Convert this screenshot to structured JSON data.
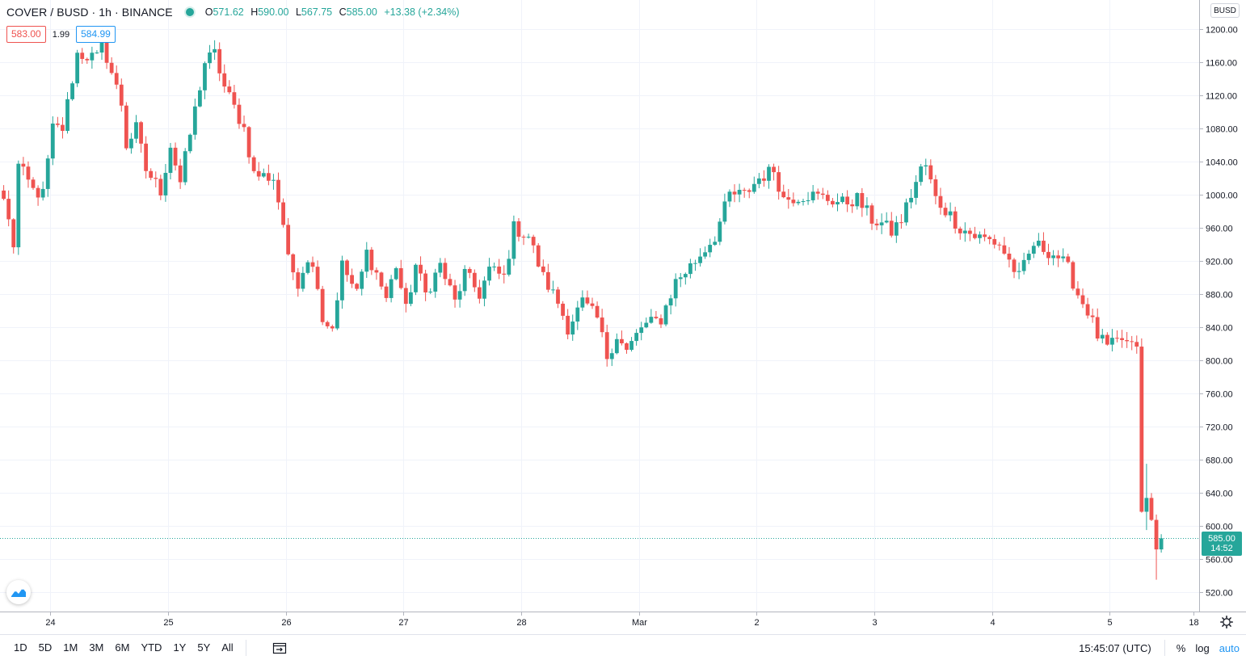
{
  "legend": {
    "symbol": "COVER / BUSD · 1h · BINANCE",
    "open_label": "O",
    "open": "571.62",
    "high_label": "H",
    "high": "590.00",
    "low_label": "L",
    "low": "567.75",
    "close_label": "C",
    "close": "585.00",
    "change": "+13.38 (+2.34%)"
  },
  "quote": {
    "bid": "583.00",
    "spread": "1.99",
    "ask": "584.99"
  },
  "currency": "BUSD",
  "last_price": {
    "value": "585.00",
    "countdown": "14:52"
  },
  "bottom_bar": {
    "periods": [
      "1D",
      "5D",
      "1M",
      "3M",
      "6M",
      "YTD",
      "1Y",
      "5Y",
      "All"
    ],
    "clock": "15:45:07 (UTC)",
    "percent": "%",
    "log": "log",
    "auto": "auto"
  },
  "colors": {
    "up": "#26a69a",
    "down": "#ef5350",
    "grid": "#f0f3fa",
    "axis": "#b2b5be",
    "accent": "#2196f3"
  },
  "chart_data": {
    "type": "candlestick",
    "title": "COVER / BUSD · 1h · BINANCE",
    "ylim": [
      500,
      1220
    ],
    "y_ticks": [
      1200,
      1160,
      1120,
      1080,
      1040,
      1000,
      960,
      920,
      880,
      840,
      800,
      760,
      720,
      680,
      640,
      600,
      560,
      520
    ],
    "x_ticks": [
      {
        "label": "24",
        "hour": 9.5
      },
      {
        "label": "25",
        "hour": 33.5
      },
      {
        "label": "26",
        "hour": 57.5
      },
      {
        "label": "27",
        "hour": 81.5
      },
      {
        "label": "28",
        "hour": 105.5
      },
      {
        "label": "Mar",
        "hour": 129.5
      },
      {
        "label": "2",
        "hour": 153.5
      },
      {
        "label": "3",
        "hour": 177.5
      },
      {
        "label": "4",
        "hour": 201.5
      },
      {
        "label": "5",
        "hour": 225.5
      },
      {
        "label": "18",
        "hour": 242.5
      }
    ],
    "anchors": [
      [
        0,
        995
      ],
      [
        2,
        940
      ],
      [
        3,
        1035
      ],
      [
        6,
        1005
      ],
      [
        8,
        1000
      ],
      [
        10,
        1080
      ],
      [
        12,
        1080
      ],
      [
        15,
        1170
      ],
      [
        19,
        1165
      ],
      [
        20,
        1185
      ],
      [
        24,
        1110
      ],
      [
        25,
        1060
      ],
      [
        27,
        1080
      ],
      [
        29,
        1030
      ],
      [
        32,
        1005
      ],
      [
        34,
        1060
      ],
      [
        36,
        1015
      ],
      [
        41,
        1160
      ],
      [
        43,
        1170
      ],
      [
        45,
        1130
      ],
      [
        49,
        1080
      ],
      [
        51,
        1025
      ],
      [
        55,
        1020
      ],
      [
        57,
        965
      ],
      [
        58,
        920
      ],
      [
        60,
        895
      ],
      [
        62,
        925
      ],
      [
        64,
        895
      ],
      [
        65,
        850
      ],
      [
        67,
        840
      ],
      [
        69,
        915
      ],
      [
        72,
        880
      ],
      [
        74,
        930
      ],
      [
        76,
        905
      ],
      [
        78,
        875
      ],
      [
        80,
        915
      ],
      [
        82,
        860
      ],
      [
        84,
        915
      ],
      [
        86,
        880
      ],
      [
        89,
        915
      ],
      [
        92,
        870
      ],
      [
        94,
        905
      ],
      [
        97,
        880
      ],
      [
        99,
        910
      ],
      [
        102,
        900
      ],
      [
        104,
        960
      ],
      [
        107,
        950
      ],
      [
        110,
        900
      ],
      [
        113,
        870
      ],
      [
        115,
        840
      ],
      [
        118,
        870
      ],
      [
        121,
        850
      ],
      [
        123,
        805
      ],
      [
        125,
        830
      ],
      [
        127,
        810
      ],
      [
        130,
        840
      ],
      [
        134,
        850
      ],
      [
        137,
        895
      ],
      [
        141,
        920
      ],
      [
        145,
        950
      ],
      [
        148,
        1000
      ],
      [
        151,
        1000
      ],
      [
        154,
        1020
      ],
      [
        157,
        1030
      ],
      [
        159,
        995
      ],
      [
        164,
        1000
      ],
      [
        168,
        995
      ],
      [
        171,
        990
      ],
      [
        174,
        995
      ],
      [
        177,
        970
      ],
      [
        179,
        965
      ],
      [
        181,
        955
      ],
      [
        183,
        970
      ],
      [
        185,
        1000
      ],
      [
        187,
        1030
      ],
      [
        188,
        1035
      ],
      [
        190,
        995
      ],
      [
        193,
        975
      ],
      [
        195,
        960
      ],
      [
        198,
        950
      ],
      [
        201,
        945
      ],
      [
        203,
        940
      ],
      [
        205,
        920
      ],
      [
        207,
        900
      ],
      [
        210,
        940
      ],
      [
        212,
        935
      ],
      [
        215,
        925
      ],
      [
        217,
        910
      ],
      [
        219,
        880
      ],
      [
        221,
        860
      ],
      [
        223,
        830
      ],
      [
        225,
        815
      ],
      [
        228,
        825
      ],
      [
        230,
        815
      ],
      [
        231,
        820
      ],
      [
        232,
        612
      ],
      [
        233,
        632
      ],
      [
        234,
        605
      ],
      [
        235,
        571.62
      ],
      [
        236,
        585
      ]
    ]
  }
}
